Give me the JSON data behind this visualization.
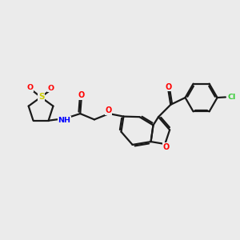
{
  "bg_color": "#ebebeb",
  "bond_color": "#1a1a1a",
  "S_color": "#cccc00",
  "N_color": "#0000ff",
  "O_color": "#ff0000",
  "Cl_color": "#33cc33",
  "line_width": 1.6,
  "fig_width": 3.0,
  "fig_height": 3.0,
  "xlim": [
    0,
    10
  ],
  "ylim": [
    2.5,
    8.5
  ]
}
